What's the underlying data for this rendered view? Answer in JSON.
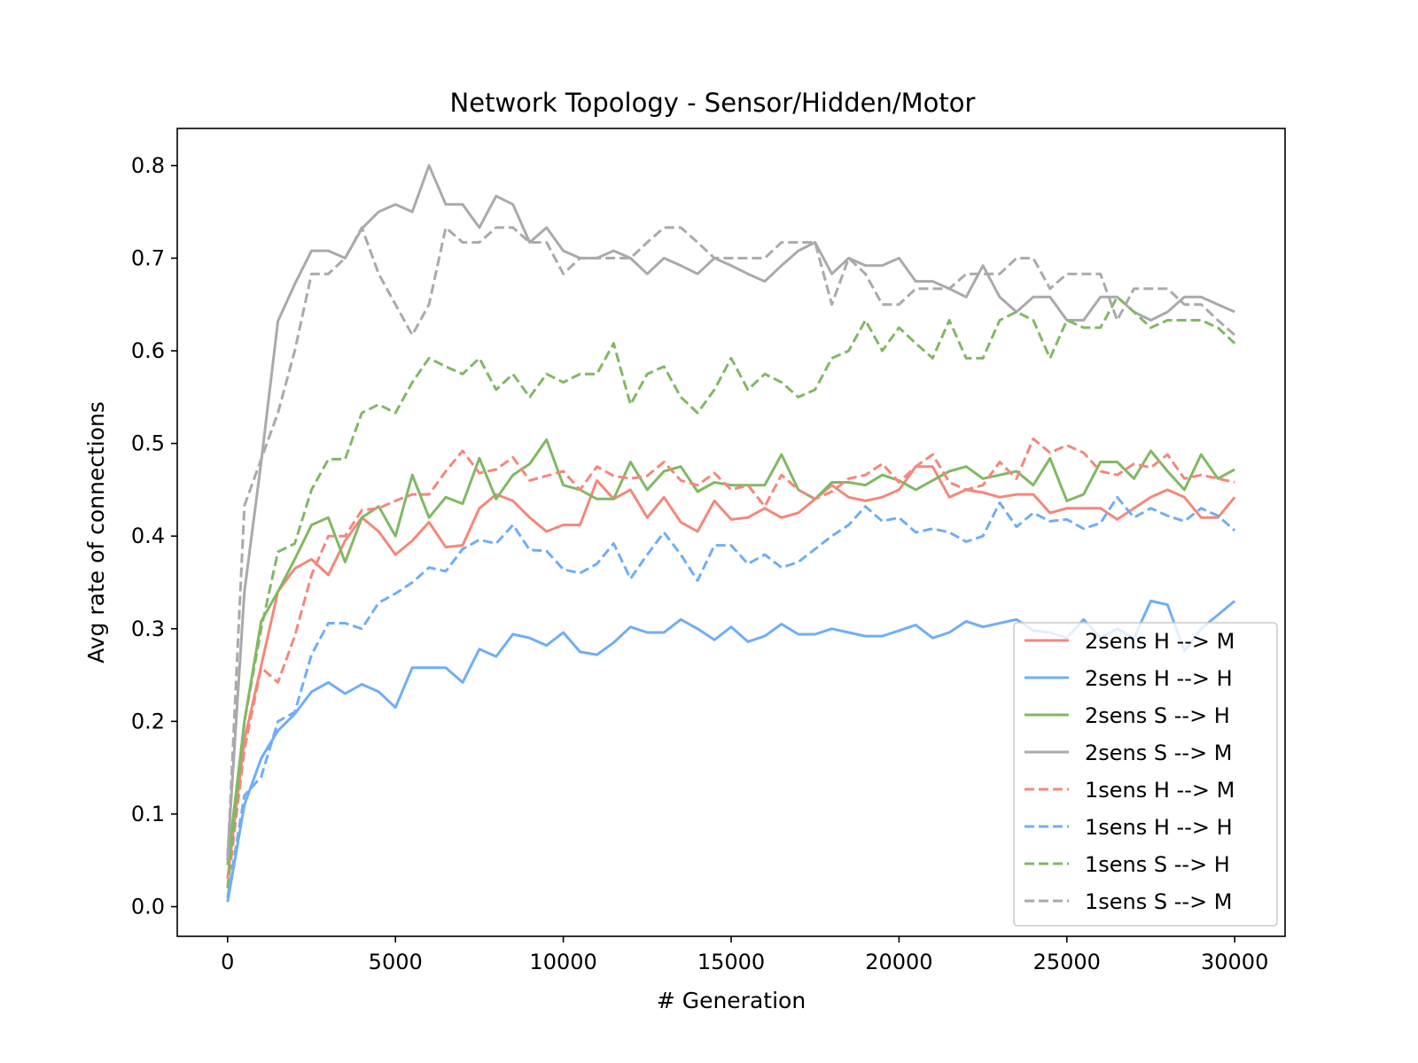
{
  "chart_data": {
    "type": "line",
    "title": "Network Topology - Sensor/Hidden/Motor",
    "xlabel": "# Generation",
    "ylabel": "Avg rate of connections",
    "xlim": [
      -1500,
      31500
    ],
    "ylim": [
      -0.032,
      0.84
    ],
    "xticks": [
      0,
      5000,
      10000,
      15000,
      20000,
      25000,
      30000
    ],
    "xtick_labels": [
      "0",
      "5000",
      "10000",
      "15000",
      "20000",
      "25000",
      "30000"
    ],
    "yticks": [
      0.0,
      0.1,
      0.2,
      0.3,
      0.4,
      0.5,
      0.6,
      0.7,
      0.8
    ],
    "ytick_labels": [
      "0.0",
      "0.1",
      "0.2",
      "0.3",
      "0.4",
      "0.5",
      "0.6",
      "0.7",
      "0.8"
    ],
    "grid": false,
    "legend_position": "lower-right",
    "x": [
      0,
      500,
      1000,
      1500,
      2000,
      2500,
      3000,
      3500,
      4000,
      4500,
      5000,
      5500,
      6000,
      6500,
      7000,
      7500,
      8000,
      8500,
      9000,
      9500,
      10000,
      10500,
      11000,
      11500,
      12000,
      12500,
      13000,
      13500,
      14000,
      14500,
      15000,
      15500,
      16000,
      16500,
      17000,
      17500,
      18000,
      18500,
      19000,
      19500,
      20000,
      20500,
      21000,
      21500,
      22000,
      22500,
      23000,
      23500,
      24000,
      24500,
      25000,
      25500,
      26000,
      26500,
      27000,
      27500,
      28000,
      28500,
      29000,
      29500,
      30000
    ],
    "series": [
      {
        "name": "2sens H --> M",
        "color": "#f5877b",
        "dash": "solid",
        "values": [
          0.03,
          0.18,
          0.26,
          0.34,
          0.365,
          0.375,
          0.358,
          0.395,
          0.42,
          0.405,
          0.38,
          0.395,
          0.415,
          0.388,
          0.39,
          0.43,
          0.445,
          0.438,
          0.42,
          0.405,
          0.412,
          0.412,
          0.46,
          0.44,
          0.45,
          0.42,
          0.442,
          0.415,
          0.405,
          0.438,
          0.418,
          0.42,
          0.43,
          0.42,
          0.425,
          0.44,
          0.455,
          0.442,
          0.438,
          0.442,
          0.45,
          0.475,
          0.475,
          0.442,
          0.45,
          0.447,
          0.442,
          0.445,
          0.445,
          0.425,
          0.43,
          0.43,
          0.43,
          0.418,
          0.43,
          0.442,
          0.45,
          0.442,
          0.42,
          0.42,
          0.442
        ]
      },
      {
        "name": "2sens H --> H",
        "color": "#70aef5",
        "dash": "solid",
        "values": [
          0.005,
          0.11,
          0.16,
          0.19,
          0.208,
          0.232,
          0.242,
          0.23,
          0.24,
          0.232,
          0.215,
          0.258,
          0.258,
          0.258,
          0.242,
          0.278,
          0.27,
          0.294,
          0.29,
          0.282,
          0.296,
          0.275,
          0.272,
          0.285,
          0.302,
          0.296,
          0.296,
          0.31,
          0.3,
          0.288,
          0.302,
          0.286,
          0.292,
          0.305,
          0.294,
          0.294,
          0.3,
          0.296,
          0.292,
          0.292,
          0.298,
          0.304,
          0.29,
          0.296,
          0.308,
          0.302,
          0.306,
          0.31,
          0.298,
          0.296,
          0.29,
          0.31,
          0.29,
          0.3,
          0.29,
          0.33,
          0.326,
          0.276,
          0.3,
          0.315,
          0.33
        ]
      },
      {
        "name": "2sens S --> H",
        "color": "#82b864",
        "dash": "solid",
        "values": [
          0.045,
          0.2,
          0.308,
          0.34,
          0.375,
          0.412,
          0.42,
          0.372,
          0.42,
          0.432,
          0.4,
          0.466,
          0.42,
          0.442,
          0.435,
          0.484,
          0.44,
          0.466,
          0.478,
          0.504,
          0.455,
          0.45,
          0.44,
          0.44,
          0.48,
          0.45,
          0.47,
          0.475,
          0.448,
          0.458,
          0.455,
          0.455,
          0.455,
          0.488,
          0.45,
          0.44,
          0.458,
          0.458,
          0.455,
          0.466,
          0.46,
          0.45,
          0.46,
          0.47,
          0.475,
          0.462,
          0.466,
          0.47,
          0.455,
          0.484,
          0.438,
          0.445,
          0.48,
          0.48,
          0.462,
          0.492,
          0.47,
          0.45,
          0.488,
          0.462,
          0.472
        ]
      },
      {
        "name": "2sens S --> M",
        "color": "#aaaaaa",
        "dash": "solid",
        "values": [
          0.055,
          0.34,
          0.48,
          0.632,
          0.672,
          0.708,
          0.708,
          0.7,
          0.732,
          0.75,
          0.758,
          0.75,
          0.8,
          0.758,
          0.758,
          0.733,
          0.767,
          0.758,
          0.717,
          0.733,
          0.708,
          0.7,
          0.7,
          0.708,
          0.7,
          0.683,
          0.7,
          0.692,
          0.683,
          0.7,
          0.692,
          0.683,
          0.675,
          0.692,
          0.708,
          0.717,
          0.683,
          0.7,
          0.692,
          0.692,
          0.7,
          0.675,
          0.675,
          0.667,
          0.658,
          0.692,
          0.658,
          0.642,
          0.658,
          0.658,
          0.633,
          0.633,
          0.658,
          0.658,
          0.642,
          0.633,
          0.642,
          0.658,
          0.658,
          0.65,
          0.642
        ]
      },
      {
        "name": "1sens H --> M",
        "color": "#f5877b",
        "dash": "dashed",
        "values": [
          0.02,
          0.17,
          0.258,
          0.242,
          0.292,
          0.358,
          0.4,
          0.4,
          0.428,
          0.43,
          0.438,
          0.445,
          0.445,
          0.47,
          0.492,
          0.468,
          0.472,
          0.485,
          0.46,
          0.465,
          0.47,
          0.45,
          0.475,
          0.465,
          0.462,
          0.465,
          0.48,
          0.46,
          0.455,
          0.468,
          0.45,
          0.455,
          0.432,
          0.466,
          0.45,
          0.44,
          0.448,
          0.462,
          0.466,
          0.478,
          0.458,
          0.475,
          0.488,
          0.458,
          0.45,
          0.455,
          0.48,
          0.462,
          0.505,
          0.49,
          0.498,
          0.49,
          0.47,
          0.466,
          0.478,
          0.474,
          0.488,
          0.462,
          0.466,
          0.462,
          0.458
        ]
      },
      {
        "name": "1sens H --> H",
        "color": "#70aef5",
        "dash": "dashed",
        "values": [
          0.01,
          0.12,
          0.14,
          0.2,
          0.21,
          0.272,
          0.306,
          0.306,
          0.3,
          0.328,
          0.338,
          0.35,
          0.366,
          0.362,
          0.386,
          0.396,
          0.392,
          0.412,
          0.385,
          0.384,
          0.364,
          0.36,
          0.37,
          0.392,
          0.354,
          0.38,
          0.404,
          0.38,
          0.352,
          0.39,
          0.39,
          0.37,
          0.38,
          0.366,
          0.372,
          0.386,
          0.4,
          0.412,
          0.432,
          0.416,
          0.42,
          0.404,
          0.408,
          0.404,
          0.394,
          0.4,
          0.436,
          0.41,
          0.425,
          0.416,
          0.418,
          0.408,
          0.414,
          0.442,
          0.42,
          0.43,
          0.422,
          0.416,
          0.43,
          0.422,
          0.406
        ]
      },
      {
        "name": "1sens S --> H",
        "color": "#82b864",
        "dash": "dashed",
        "values": [
          0.02,
          0.2,
          0.3,
          0.383,
          0.392,
          0.45,
          0.483,
          0.483,
          0.533,
          0.542,
          0.533,
          0.566,
          0.592,
          0.583,
          0.575,
          0.592,
          0.558,
          0.575,
          0.55,
          0.575,
          0.566,
          0.575,
          0.575,
          0.608,
          0.542,
          0.575,
          0.583,
          0.55,
          0.533,
          0.558,
          0.592,
          0.558,
          0.575,
          0.566,
          0.55,
          0.558,
          0.592,
          0.6,
          0.633,
          0.6,
          0.625,
          0.608,
          0.592,
          0.633,
          0.592,
          0.592,
          0.633,
          0.642,
          0.633,
          0.592,
          0.633,
          0.625,
          0.625,
          0.658,
          0.642,
          0.625,
          0.633,
          0.633,
          0.633,
          0.625,
          0.608
        ]
      },
      {
        "name": "1sens S --> M",
        "color": "#aaaaaa",
        "dash": "dashed",
        "values": [
          0.05,
          0.433,
          0.483,
          0.533,
          0.6,
          0.683,
          0.683,
          0.7,
          0.733,
          0.683,
          0.65,
          0.617,
          0.65,
          0.733,
          0.717,
          0.717,
          0.733,
          0.733,
          0.717,
          0.717,
          0.683,
          0.7,
          0.7,
          0.7,
          0.7,
          0.717,
          0.733,
          0.733,
          0.717,
          0.7,
          0.7,
          0.7,
          0.7,
          0.717,
          0.717,
          0.717,
          0.65,
          0.7,
          0.683,
          0.65,
          0.65,
          0.667,
          0.667,
          0.667,
          0.683,
          0.683,
          0.683,
          0.7,
          0.7,
          0.667,
          0.683,
          0.683,
          0.683,
          0.633,
          0.667,
          0.667,
          0.667,
          0.65,
          0.65,
          0.633,
          0.617
        ]
      }
    ]
  }
}
